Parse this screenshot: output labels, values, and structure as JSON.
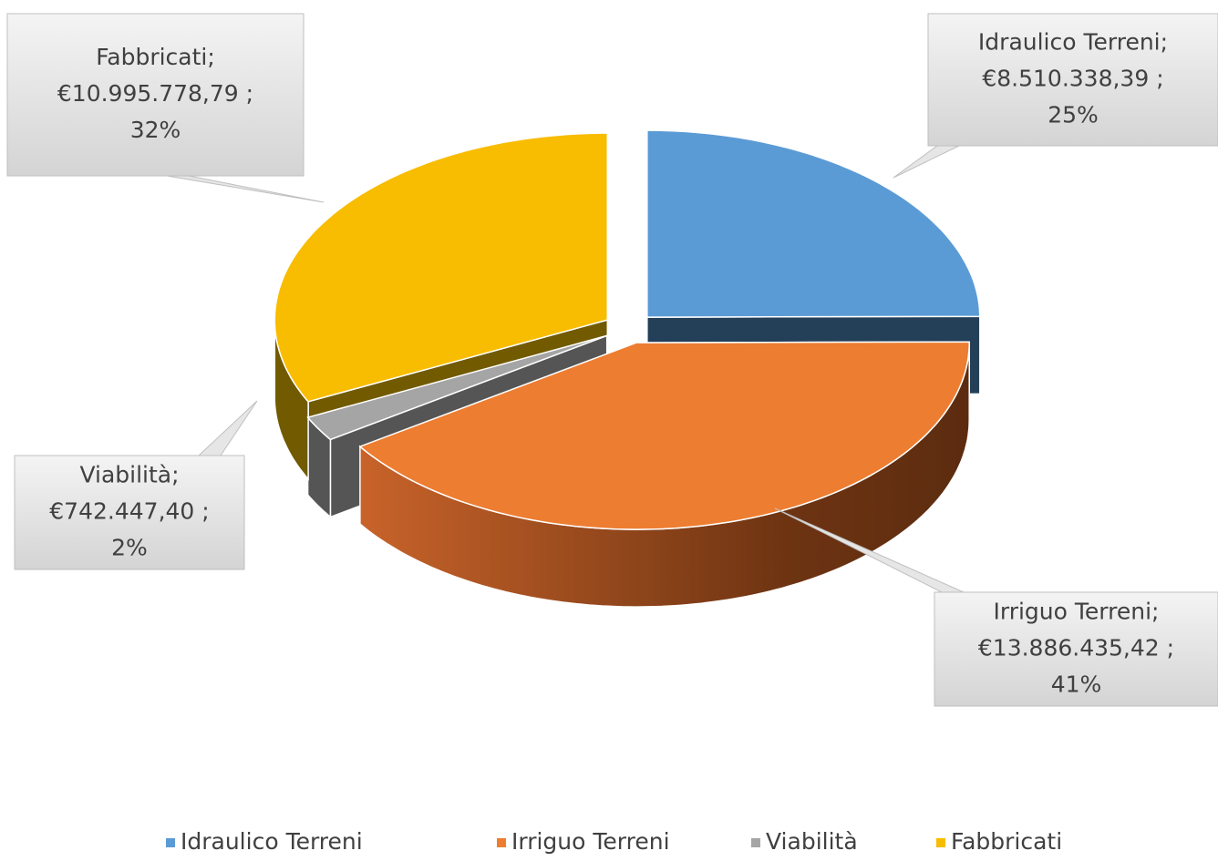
{
  "chart_data": {
    "type": "pie3d",
    "categories": [
      "Idraulico Terreni",
      "Irriguo Terreni",
      "Viabilità",
      "Fabbricati"
    ],
    "values": [
      8510338.39,
      13886435.42,
      742447.4,
      10995778.79
    ],
    "value_labels": [
      "€8.510.338,39",
      "€13.886.435,42",
      "€742.447,40",
      "€10.995.778,79"
    ],
    "percents": [
      25,
      41,
      2,
      32
    ],
    "percent_labels": [
      "25%",
      "41%",
      "2%",
      "32%"
    ],
    "separator": ";",
    "colors": [
      "#5b9bd5",
      "#ed7d31",
      "#a5a5a5",
      "#f8bc00"
    ],
    "legend": "bottom"
  }
}
